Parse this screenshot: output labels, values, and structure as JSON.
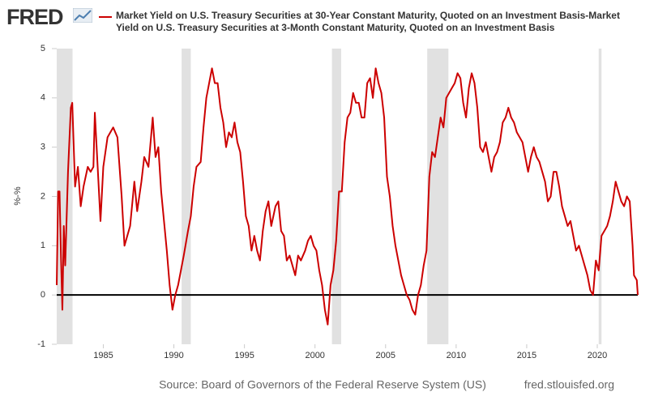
{
  "chart_data": {
    "type": "line",
    "logo": "FRED",
    "title": "Market Yield on U.S. Treasury Securities at 30-Year Constant Maturity, Quoted on an Investment Basis-Market Yield on U.S. Treasury Securities at 3-Month Constant Maturity, Quoted on an Investment Basis",
    "y_label": "%-%",
    "source": "Source: Board of Governors of the Federal Reserve System (US)",
    "site": "fred.stlouisfed.org",
    "xlim": [
      1981.7,
      2022.87
    ],
    "xticks": [
      1985,
      1990,
      1995,
      2000,
      2005,
      2010,
      2015,
      2020
    ],
    "ylim": [
      -1,
      5
    ],
    "yticks": [
      -1,
      0,
      1,
      2,
      3,
      4,
      5
    ],
    "baseline": 0,
    "recessions": [
      [
        1981.7,
        1982.82
      ],
      [
        1990.55,
        1991.2
      ],
      [
        2001.2,
        2001.85
      ],
      [
        2007.95,
        2009.45
      ],
      [
        2020.1,
        2020.3
      ]
    ],
    "recession_color": "#e1e1e1",
    "series": [
      {
        "name": "Market Yield on U.S. Treasury Securities at 30-Year Constant Maturity, Quoted on an Investment Basis-Market Yield on U.S. Treasury Securities at 3-Month Constant Maturity, Quoted on an Investment Basis",
        "color": "#cc0000",
        "x": [
          1981.7,
          1981.8,
          1981.9,
          1982.0,
          1982.1,
          1982.2,
          1982.3,
          1982.5,
          1982.7,
          1982.8,
          1983.0,
          1983.2,
          1983.4,
          1983.6,
          1983.9,
          1984.1,
          1984.3,
          1984.4,
          1984.6,
          1984.8,
          1985.0,
          1985.3,
          1985.5,
          1985.7,
          1986.0,
          1986.3,
          1986.5,
          1986.7,
          1986.9,
          1987.2,
          1987.4,
          1987.7,
          1987.9,
          1988.2,
          1988.5,
          1988.7,
          1988.9,
          1989.1,
          1989.3,
          1989.5,
          1989.7,
          1989.9,
          1990.1,
          1990.3,
          1990.5,
          1990.7,
          1991.0,
          1991.2,
          1991.4,
          1991.6,
          1991.9,
          1992.1,
          1992.3,
          1992.5,
          1992.7,
          1992.9,
          1993.1,
          1993.3,
          1993.5,
          1993.7,
          1993.9,
          1994.1,
          1994.3,
          1994.5,
          1994.7,
          1994.9,
          1995.1,
          1995.3,
          1995.5,
          1995.7,
          1995.9,
          1996.1,
          1996.3,
          1996.5,
          1996.7,
          1996.9,
          1997.2,
          1997.4,
          1997.6,
          1997.8,
          1998.0,
          1998.2,
          1998.4,
          1998.6,
          1998.8,
          1999.0,
          1999.3,
          1999.5,
          1999.7,
          1999.9,
          2000.1,
          2000.3,
          2000.5,
          2000.7,
          2000.9,
          2001.1,
          2001.3,
          2001.5,
          2001.7,
          2001.9,
          2002.1,
          2002.3,
          2002.5,
          2002.7,
          2002.9,
          2003.1,
          2003.3,
          2003.5,
          2003.7,
          2003.9,
          2004.1,
          2004.3,
          2004.5,
          2004.7,
          2004.9,
          2005.1,
          2005.3,
          2005.5,
          2005.7,
          2005.9,
          2006.1,
          2006.3,
          2006.5,
          2006.7,
          2006.9,
          2007.1,
          2007.3,
          2007.5,
          2007.7,
          2007.9,
          2008.1,
          2008.3,
          2008.5,
          2008.7,
          2008.9,
          2009.1,
          2009.3,
          2009.5,
          2009.7,
          2009.9,
          2010.1,
          2010.3,
          2010.5,
          2010.7,
          2010.9,
          2011.1,
          2011.3,
          2011.5,
          2011.7,
          2011.9,
          2012.1,
          2012.3,
          2012.5,
          2012.7,
          2012.9,
          2013.1,
          2013.3,
          2013.5,
          2013.7,
          2013.9,
          2014.1,
          2014.3,
          2014.5,
          2014.7,
          2014.9,
          2015.1,
          2015.3,
          2015.5,
          2015.7,
          2015.9,
          2016.1,
          2016.3,
          2016.5,
          2016.7,
          2016.9,
          2017.1,
          2017.3,
          2017.5,
          2017.7,
          2017.9,
          2018.1,
          2018.3,
          2018.5,
          2018.7,
          2018.9,
          2019.1,
          2019.3,
          2019.5,
          2019.7,
          2019.9,
          2020.1,
          2020.3,
          2020.5,
          2020.7,
          2020.9,
          2021.1,
          2021.3,
          2021.5,
          2021.7,
          2021.9,
          2022.1,
          2022.3,
          2022.5,
          2022.6,
          2022.8,
          2022.87
        ],
        "values": [
          0.2,
          2.1,
          2.1,
          0.8,
          -0.3,
          1.4,
          0.6,
          2.5,
          3.8,
          3.9,
          2.2,
          2.6,
          1.8,
          2.2,
          2.6,
          2.5,
          2.6,
          3.7,
          2.6,
          1.5,
          2.6,
          3.2,
          3.3,
          3.4,
          3.2,
          2.0,
          1.0,
          1.2,
          1.4,
          2.3,
          1.7,
          2.3,
          2.8,
          2.6,
          3.6,
          2.8,
          3.0,
          2.1,
          1.5,
          0.9,
          0.2,
          -0.3,
          0.0,
          0.2,
          0.5,
          0.8,
          1.3,
          1.6,
          2.2,
          2.6,
          2.7,
          3.4,
          4.0,
          4.3,
          4.6,
          4.3,
          4.3,
          3.8,
          3.5,
          3.0,
          3.3,
          3.2,
          3.5,
          3.1,
          2.9,
          2.3,
          1.6,
          1.4,
          0.9,
          1.2,
          0.9,
          0.7,
          1.3,
          1.7,
          1.9,
          1.4,
          1.8,
          1.9,
          1.3,
          1.2,
          0.7,
          0.8,
          0.6,
          0.4,
          0.8,
          0.7,
          0.9,
          1.1,
          1.2,
          1.0,
          0.9,
          0.5,
          0.2,
          -0.3,
          -0.6,
          0.2,
          0.5,
          1.1,
          2.1,
          2.1,
          3.1,
          3.6,
          3.7,
          4.1,
          3.9,
          3.9,
          3.6,
          3.6,
          4.3,
          4.4,
          4.0,
          4.6,
          4.3,
          4.1,
          3.6,
          2.4,
          2.0,
          1.4,
          1.0,
          0.7,
          0.4,
          0.2,
          0.0,
          -0.1,
          -0.3,
          -0.4,
          0.0,
          0.2,
          0.6,
          0.9,
          2.4,
          2.9,
          2.8,
          3.2,
          3.6,
          3.4,
          4.0,
          4.1,
          4.2,
          4.3,
          4.5,
          4.4,
          3.9,
          3.6,
          4.2,
          4.5,
          4.3,
          3.8,
          3.0,
          2.9,
          3.1,
          2.8,
          2.5,
          2.8,
          2.9,
          3.1,
          3.5,
          3.6,
          3.8,
          3.6,
          3.5,
          3.3,
          3.2,
          3.1,
          2.8,
          2.5,
          2.8,
          3.0,
          2.8,
          2.7,
          2.5,
          2.3,
          1.9,
          2.0,
          2.5,
          2.5,
          2.2,
          1.8,
          1.6,
          1.4,
          1.5,
          1.2,
          0.9,
          1.0,
          0.8,
          0.6,
          0.4,
          0.1,
          0.0,
          0.7,
          0.5,
          1.2,
          1.3,
          1.4,
          1.6,
          1.9,
          2.3,
          2.1,
          1.9,
          1.8,
          2.0,
          1.9,
          1.0,
          0.4,
          0.3,
          0.0
        ]
      }
    ]
  }
}
